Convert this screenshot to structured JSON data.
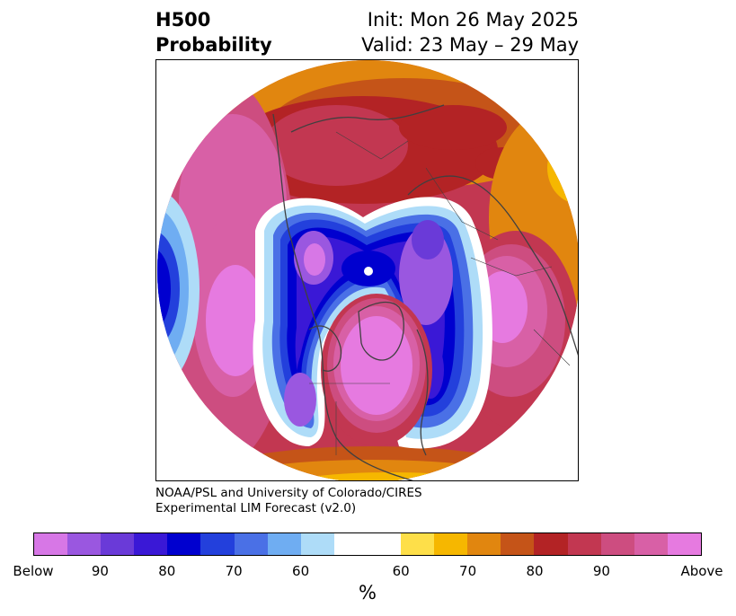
{
  "header": {
    "title_line1": "H500",
    "title_line2": "Probability",
    "init_text": "Init: Mon 26 May 2025",
    "valid_text": "Valid: 23 May – 29 May"
  },
  "credit": {
    "line1": "NOAA/PSL and University of Colorado/CIRES",
    "line2": "Experimental LIM Forecast (v2.0)"
  },
  "colorbar": {
    "unit": "%",
    "colors": [
      "#d777e6",
      "#9a57e0",
      "#6a3ad8",
      "#3a18d6",
      "#0000cf",
      "#2340dc",
      "#4a70e6",
      "#6fadf2",
      "#aedcf8",
      "#ffffff",
      "#fedf49",
      "#f6b700",
      "#e1860f",
      "#c55418",
      "#b32325",
      "#c23751",
      "#cd4d80",
      "#d860a6",
      "#e67ae0"
    ],
    "tick_labels": [
      "Below",
      "90",
      "80",
      "70",
      "60",
      "60",
      "70",
      "80",
      "90",
      "Above"
    ]
  },
  "map": {
    "projection": "north-polar-stereographic",
    "palette": {
      "deep_magenta": "#e67ae0",
      "pink": "#d860a6",
      "rose": "#cd4d80",
      "crimson": "#c23751",
      "dark_red": "#b32325",
      "rust": "#c55418",
      "orange": "#e1860f",
      "gold": "#f6b700",
      "yellow": "#fedf49",
      "pale_blue": "#aedcf8",
      "sky_blue": "#6fadf2",
      "blue": "#4a70e6",
      "royal_blue": "#2340dc",
      "navy": "#0000cf",
      "indigo": "#3a18d6",
      "violet": "#6a3ad8",
      "purple": "#9a57e0",
      "orchid": "#d777e6",
      "coast": "#404040"
    }
  }
}
